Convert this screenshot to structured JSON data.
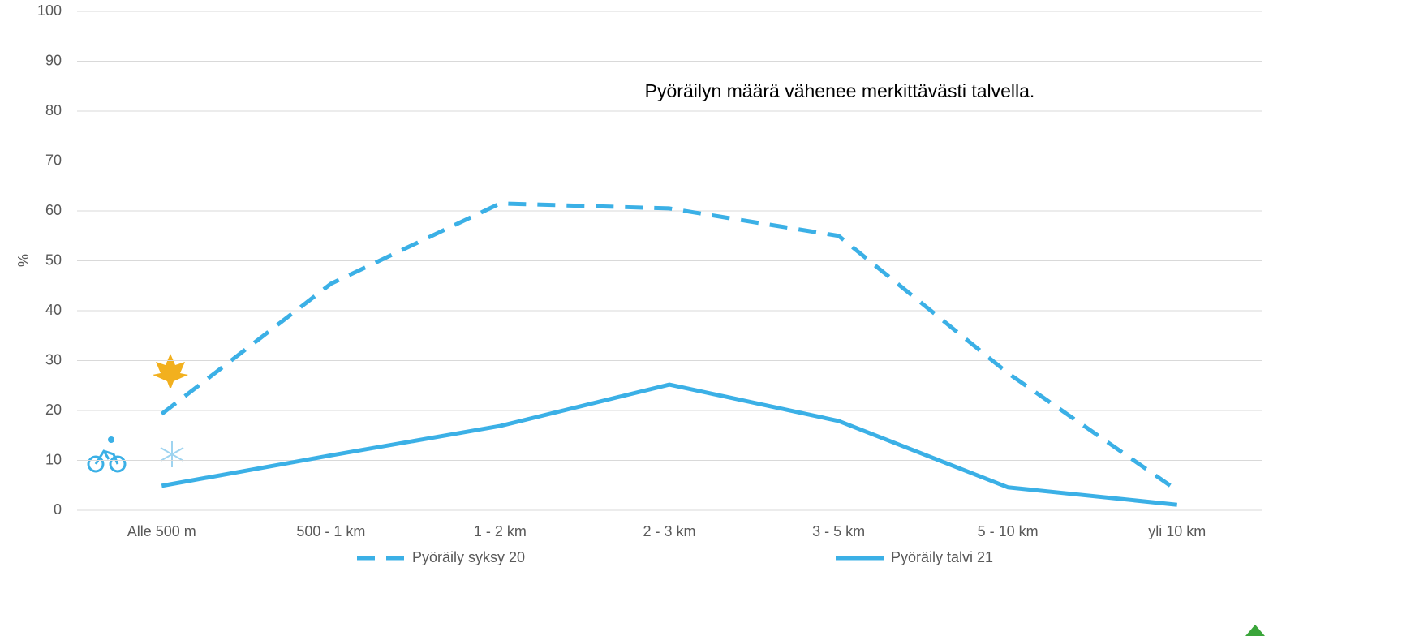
{
  "chart_data": {
    "type": "line",
    "annotation": "Pyöräilyn määrä vähenee merkittävästi talvella.",
    "y_label": "%",
    "categories": [
      "Alle 500 m",
      "500 - 1 km",
      "1 - 2 km",
      "2 - 3 km",
      "3 - 5 km",
      "5 - 10 km",
      "yli 10 km"
    ],
    "series": [
      {
        "name": "Pyöräily syksy 20",
        "color": "#3bb0e6",
        "dash": true,
        "values": [
          19.3,
          45.4,
          61.5,
          60.5,
          55,
          27.5,
          4
        ]
      },
      {
        "name": "Pyöräily talvi 21",
        "color": "#3bb0e6",
        "dash": false,
        "values": [
          4.9,
          11,
          16.9,
          25.2,
          17.9,
          4.6,
          1.1
        ]
      }
    ],
    "ylim": [
      0,
      100
    ],
    "yticks": [
      0,
      10,
      20,
      30,
      40,
      50,
      60,
      70,
      80,
      90,
      100
    ],
    "grid": true,
    "legend": "bottom"
  }
}
